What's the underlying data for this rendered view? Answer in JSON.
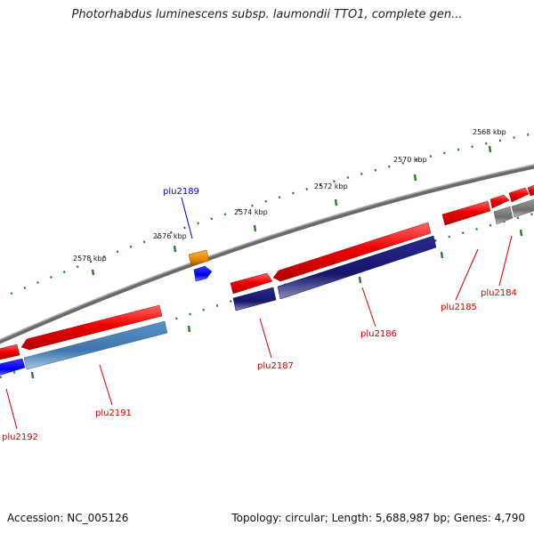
{
  "title": "Photorhabdus luminescens subsp. laumondii TTO1, complete gen...",
  "footer": {
    "accession": "Accession: NC_005126",
    "summary": "Topology: circular; Length: 5,688,987 bp; Genes: 4,790"
  },
  "scale_labels": [
    "2568 kbp",
    "2570 kbp",
    "2572 kbp",
    "2574 kbp",
    "2576 kbp",
    "2578 kbp"
  ],
  "genes": [
    {
      "name": "plu2184",
      "color": "#cc0000"
    },
    {
      "name": "plu2185",
      "color": "#cc0000"
    },
    {
      "name": "plu2186",
      "color": "#cc0000"
    },
    {
      "name": "plu2187",
      "color": "#cc0000"
    },
    {
      "name": "plu2189",
      "color": "#0000cc"
    },
    {
      "name": "plu2191",
      "color": "#cc0000"
    },
    {
      "name": "plu2192",
      "color": "#cc0000"
    }
  ],
  "colors": {
    "backbone": "#808080",
    "forward_gene": "#ee0000",
    "reverse_navy": "#1a1a7a",
    "reverse_steel": "#4a7fb5",
    "reverse_blue": "#0000ff",
    "gray_gene": "#777777",
    "orange_gene": "#e88a00",
    "tick": "#2a7a2a"
  }
}
